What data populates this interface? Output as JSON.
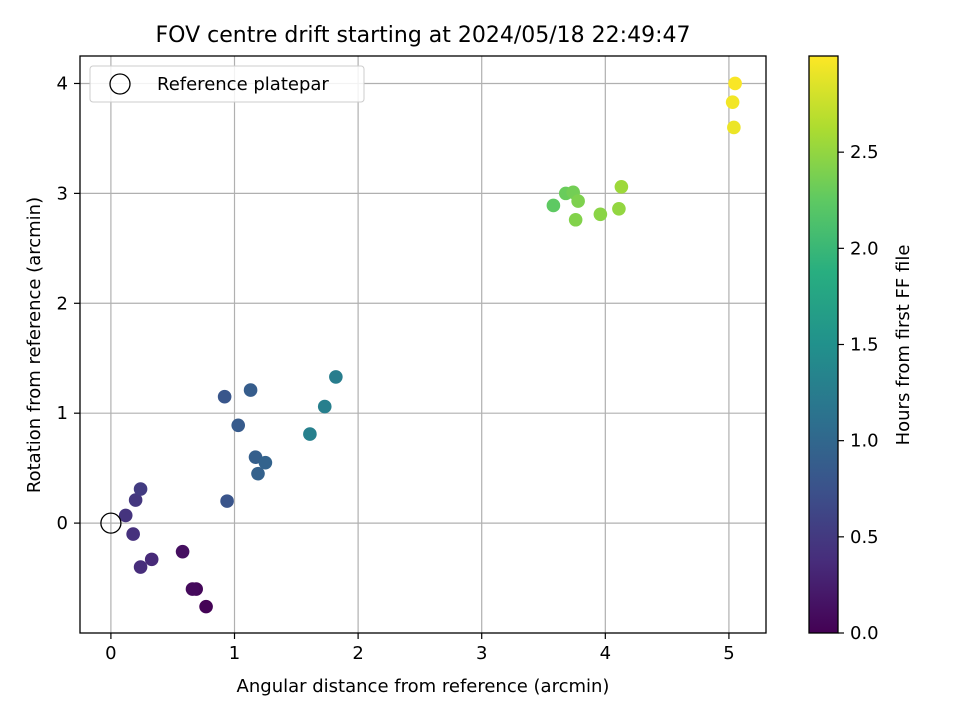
{
  "chart_data": {
    "type": "scatter",
    "title": "FOV centre drift starting at 2024/05/18 22:49:47",
    "xlabel": "Angular distance from reference (arcmin)",
    "ylabel": "Rotation from reference (arcmin)",
    "xlim": [
      -0.25,
      5.3
    ],
    "ylim": [
      -1.0,
      4.25
    ],
    "xticks": [
      0,
      1,
      2,
      3,
      4,
      5
    ],
    "yticks": [
      0,
      1,
      2,
      3,
      4
    ],
    "grid": true,
    "legend": {
      "position": "top-left",
      "entries": [
        "Reference platepar"
      ]
    },
    "reference": {
      "x": 0,
      "y": 0
    },
    "colorbar": {
      "label": "Hours from first FF file",
      "range": [
        0.0,
        3.0
      ],
      "ticks": [
        "0.0",
        "0.5",
        "1.0",
        "1.5",
        "2.0",
        "2.5"
      ],
      "colormap": "viridis"
    },
    "points": [
      {
        "x": 0.77,
        "y": -0.76,
        "c": 0.02
      },
      {
        "x": 0.69,
        "y": -0.6,
        "c": 0.05
      },
      {
        "x": 0.66,
        "y": -0.6,
        "c": 0.08
      },
      {
        "x": 0.58,
        "y": -0.26,
        "c": 0.12
      },
      {
        "x": 0.33,
        "y": -0.33,
        "c": 0.35
      },
      {
        "x": 0.24,
        "y": -0.4,
        "c": 0.38
      },
      {
        "x": 0.18,
        "y": -0.1,
        "c": 0.42
      },
      {
        "x": 0.12,
        "y": 0.07,
        "c": 0.45
      },
      {
        "x": 0.2,
        "y": 0.21,
        "c": 0.48
      },
      {
        "x": 0.24,
        "y": 0.31,
        "c": 0.52
      },
      {
        "x": 0.94,
        "y": 0.2,
        "c": 0.78
      },
      {
        "x": 0.92,
        "y": 1.15,
        "c": 0.8
      },
      {
        "x": 1.03,
        "y": 0.89,
        "c": 0.85
      },
      {
        "x": 1.13,
        "y": 1.21,
        "c": 0.88
      },
      {
        "x": 1.17,
        "y": 0.6,
        "c": 0.9
      },
      {
        "x": 1.19,
        "y": 0.45,
        "c": 0.92
      },
      {
        "x": 1.25,
        "y": 0.55,
        "c": 0.95
      },
      {
        "x": 1.61,
        "y": 0.81,
        "c": 1.3
      },
      {
        "x": 1.73,
        "y": 1.06,
        "c": 1.28
      },
      {
        "x": 1.82,
        "y": 1.33,
        "c": 1.26
      },
      {
        "x": 3.58,
        "y": 2.89,
        "c": 2.25
      },
      {
        "x": 3.68,
        "y": 3.0,
        "c": 2.3
      },
      {
        "x": 3.74,
        "y": 3.01,
        "c": 2.35
      },
      {
        "x": 3.78,
        "y": 2.93,
        "c": 2.4
      },
      {
        "x": 3.76,
        "y": 2.76,
        "c": 2.42
      },
      {
        "x": 3.96,
        "y": 2.81,
        "c": 2.46
      },
      {
        "x": 4.11,
        "y": 2.86,
        "c": 2.5
      },
      {
        "x": 4.13,
        "y": 3.06,
        "c": 2.55
      },
      {
        "x": 5.04,
        "y": 3.6,
        "c": 2.92
      },
      {
        "x": 5.03,
        "y": 3.83,
        "c": 2.95
      },
      {
        "x": 5.05,
        "y": 4.0,
        "c": 2.98
      }
    ]
  }
}
